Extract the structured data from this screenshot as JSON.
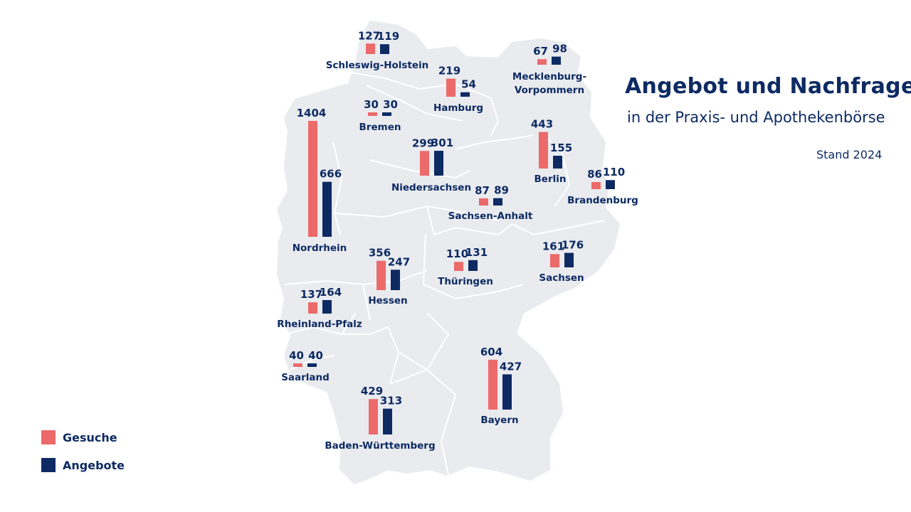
{
  "title": "Angebot und Nachfrage",
  "subtitle": "in der Praxis- und Apothekenbörse",
  "stand": "Stand 2024",
  "legend": {
    "gesuche_label": "Gesuche",
    "angebote_label": "Angebote"
  },
  "colors": {
    "gesuche": "#ec6a6a",
    "angebote": "#0d2a63",
    "map_fill": "#e9ebef",
    "map_border": "#ffffff",
    "text": "#0d2a63"
  },
  "chart_data": {
    "type": "bar",
    "categories": [
      "Schleswig-Holstein",
      "Mecklenburg-Vorpommern",
      "Hamburg",
      "Bremen",
      "Niedersachsen",
      "Berlin",
      "Brandenburg",
      "Sachsen-Anhalt",
      "Nordrhein",
      "Hessen",
      "Thüringen",
      "Sachsen",
      "Rheinland-Pfalz",
      "Saarland",
      "Bayern",
      "Baden-Württemberg"
    ],
    "series": [
      {
        "name": "Gesuche",
        "values": [
          127,
          67,
          219,
          30,
          299,
          443,
          86,
          87,
          1404,
          356,
          110,
          161,
          137,
          40,
          604,
          429
        ]
      },
      {
        "name": "Angebote",
        "values": [
          119,
          98,
          54,
          30,
          301,
          155,
          110,
          89,
          666,
          247,
          131,
          176,
          164,
          40,
          427,
          313
        ]
      }
    ],
    "title": "Angebot und Nachfrage",
    "subtitle": "in der Praxis- und Apothekenbörse",
    "legend_position": "bottom-left",
    "grid": false
  }
}
